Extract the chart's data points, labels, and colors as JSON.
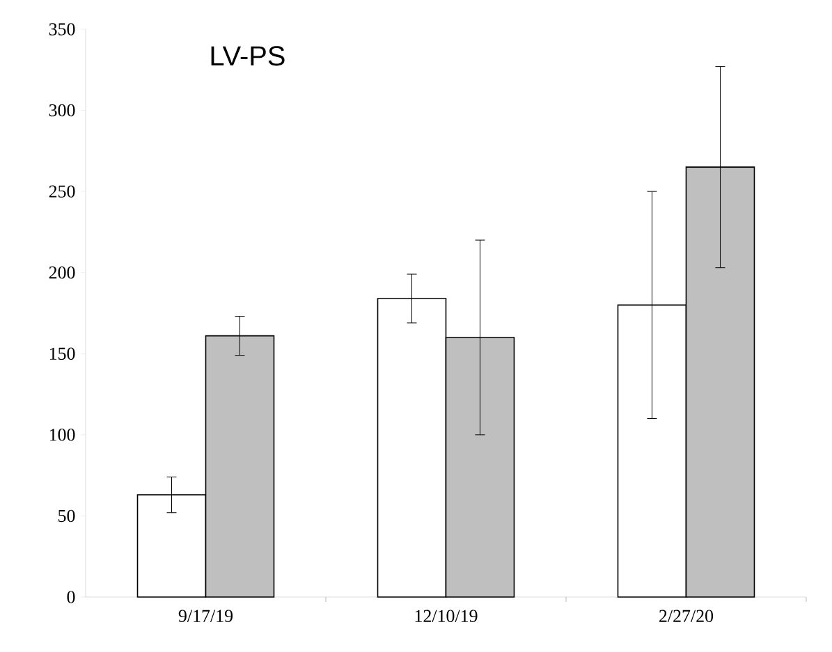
{
  "chart_data": {
    "type": "bar",
    "title": "LV-PS",
    "categories": [
      "9/17/19",
      "12/10/19",
      "2/27/20"
    ],
    "series": [
      {
        "color": "#ffffff",
        "values": [
          63,
          184,
          180
        ],
        "errors": [
          11,
          15,
          70
        ]
      },
      {
        "color": "#bfbfbf",
        "values": [
          161,
          160,
          265
        ],
        "errors": [
          12,
          60,
          62
        ]
      }
    ],
    "ylim": [
      0,
      350
    ],
    "yticks": [
      0,
      50,
      100,
      150,
      200,
      250,
      300,
      350
    ],
    "grid": false
  }
}
